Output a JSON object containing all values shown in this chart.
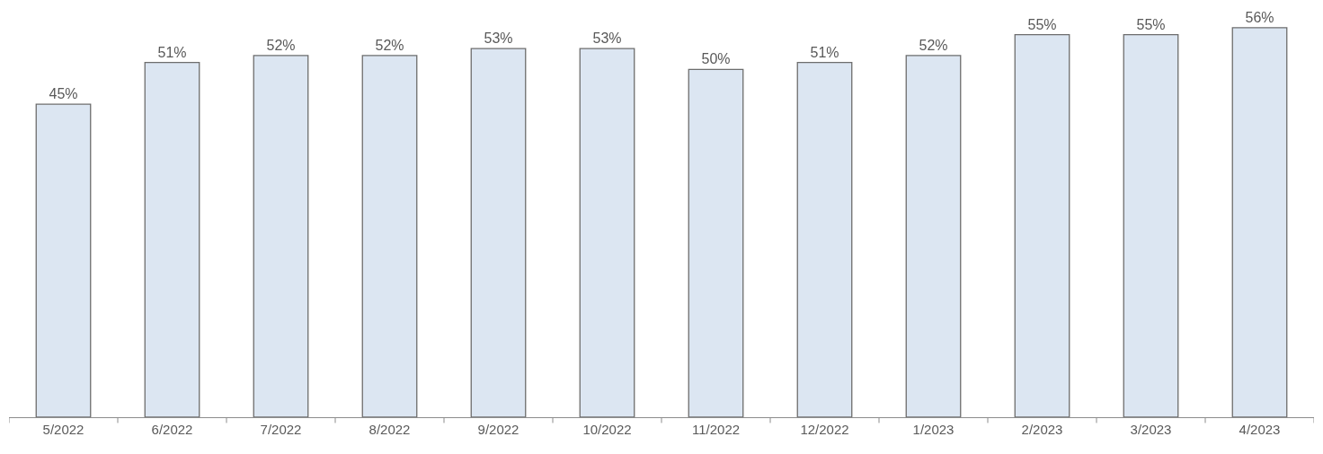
{
  "chart_data": {
    "type": "bar",
    "categories": [
      "5/2022",
      "6/2022",
      "7/2022",
      "8/2022",
      "9/2022",
      "10/2022",
      "11/2022",
      "12/2022",
      "1/2023",
      "2/2023",
      "3/2023",
      "4/2023"
    ],
    "values": [
      45,
      51,
      52,
      52,
      53,
      53,
      50,
      51,
      52,
      55,
      55,
      56
    ],
    "value_labels": [
      "45%",
      "51%",
      "52%",
      "52%",
      "53%",
      "53%",
      "50%",
      "51%",
      "52%",
      "55%",
      "55%",
      "56%"
    ],
    "color": "#dce6f2",
    "tick_labels": "x"
  }
}
